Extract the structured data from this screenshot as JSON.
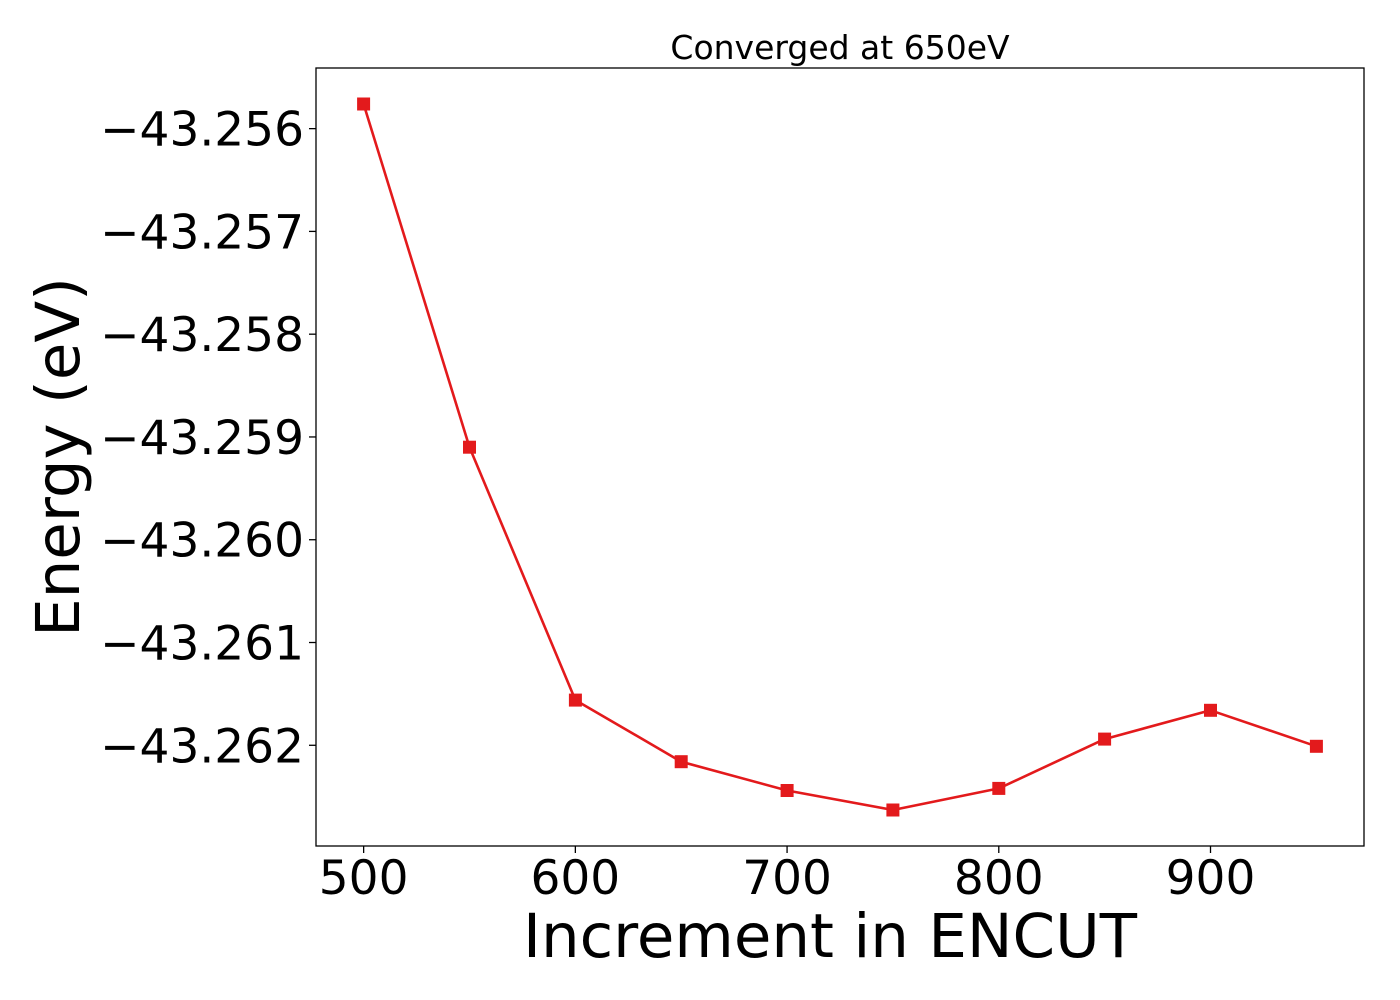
{
  "chart_data": {
    "type": "line",
    "title": "Converged at 650eV",
    "xlabel": "Increment in ENCUT",
    "ylabel": "Energy (eV)",
    "x": [
      500,
      550,
      600,
      650,
      700,
      750,
      800,
      850,
      900,
      950
    ],
    "series": [
      {
        "values": [
          -43.25576,
          -43.2591,
          -43.26156,
          -43.26216,
          -43.26244,
          -43.26263,
          -43.26242,
          -43.26194,
          -43.26166,
          -43.26201
        ],
        "color": "#e31a1c",
        "marker": "square"
      }
    ],
    "xticks": [
      500,
      600,
      700,
      800,
      900
    ],
    "xtick_labels": [
      "500",
      "600",
      "700",
      "800",
      "900"
    ],
    "yticks": [
      -43.256,
      -43.257,
      -43.258,
      -43.259,
      -43.26,
      -43.261,
      -43.262
    ],
    "ytick_labels": [
      "−43.256",
      "−43.257",
      "−43.258",
      "−43.259",
      "−43.260",
      "−43.261",
      "−43.262"
    ],
    "xlim": [
      477.5,
      972.5
    ],
    "ylim": [
      -43.26298,
      -43.25541
    ],
    "grid": false,
    "legend": false
  }
}
